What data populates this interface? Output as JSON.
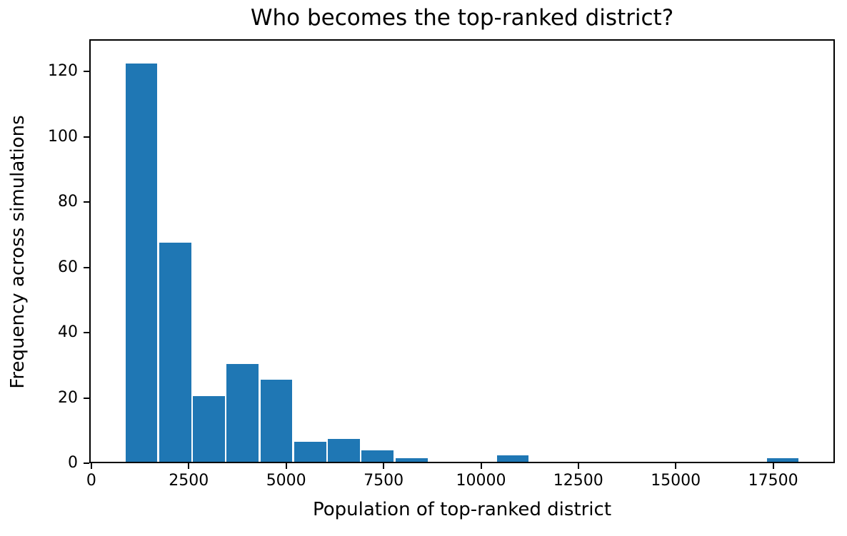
{
  "chart_data": {
    "type": "bar",
    "subtype": "histogram",
    "title": "Who becomes the top-ranked district?",
    "xlabel": "Population of top-ranked district",
    "ylabel": "Frequency across simulations",
    "bar_color": "#1f77b4",
    "bar_edge_color": "#ffffff",
    "axis_color": "#000000",
    "background_color": "#ffffff",
    "grid": false,
    "legend": "none",
    "xlim": [
      -17,
      19047
    ],
    "ylim": [
      0,
      129.5
    ],
    "x_ticks": [
      0,
      2500,
      5000,
      7500,
      10000,
      12500,
      15000,
      17500
    ],
    "y_ticks": [
      0,
      20,
      40,
      60,
      80,
      100,
      120
    ],
    "bin_edges": [
      850,
      1717,
      2583,
      3450,
      4316,
      5183,
      6049,
      6916,
      7782,
      8649,
      9515,
      10382,
      11248,
      12115,
      12981,
      13848,
      14714,
      15581,
      16447,
      17314,
      18180
    ],
    "counts": [
      122.5,
      67.5,
      20.5,
      30.5,
      25.5,
      6.5,
      7.5,
      4,
      1.5,
      0.5,
      0.5,
      2.5,
      0,
      0,
      0.5,
      0.5,
      0,
      0,
      0,
      1.5
    ]
  }
}
